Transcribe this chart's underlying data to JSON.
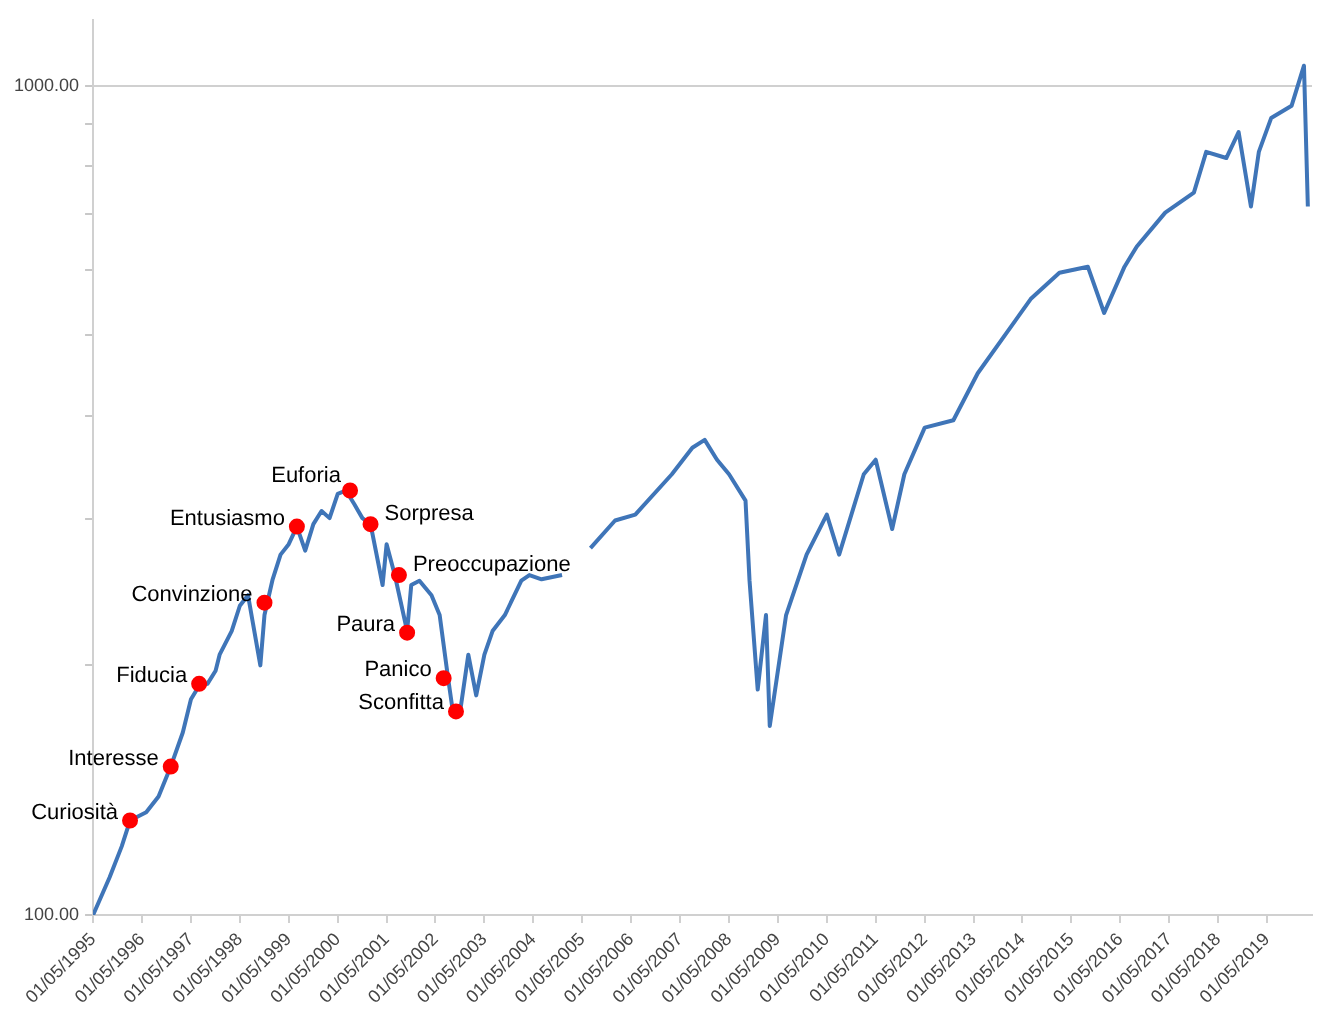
{
  "chart_data": {
    "type": "line",
    "x": [
      "1995-05",
      "1995-09",
      "1995-12",
      "1996-02",
      "1996-06",
      "1996-09",
      "1996-12",
      "1997-03",
      "1997-05",
      "1997-07",
      "1997-09",
      "1997-11",
      "1997-12",
      "1998-03",
      "1998-05",
      "1998-07",
      "1998-10",
      "1998-11",
      "1999-01",
      "1999-03",
      "1999-05",
      "1999-07",
      "1999-09",
      "1999-11",
      "2000-01",
      "2000-03",
      "2000-05",
      "2000-07",
      "2000-09",
      "2000-11",
      "2001-01",
      "2001-04",
      "2001-05",
      "2001-07",
      "2001-10",
      "2001-11",
      "2002-01",
      "2002-04",
      "2002-06",
      "2002-08",
      "2002-09",
      "2002-11",
      "2003-01",
      "2003-03",
      "2003-05",
      "2003-07",
      "2003-10",
      "2004-02",
      "2004-04",
      "2004-07",
      "2004-12",
      "2005-03",
      "2005-07",
      "2006-01",
      "2006-06",
      "2007-03",
      "2007-08",
      "2007-11",
      "2008-02",
      "2008-05",
      "2008-09",
      "2008-10",
      "2008-12",
      "2009-02",
      "2009-03",
      "2009-07",
      "2009-12",
      "2010-05",
      "2010-08",
      "2011-02",
      "2011-05",
      "2011-09",
      "2011-12",
      "2012-05",
      "2012-12",
      "2013-06",
      "2014-01",
      "2014-07",
      "2015-02",
      "2015-09",
      "2016-01",
      "2016-06",
      "2016-09",
      "2017-04",
      "2017-11",
      "2018-02",
      "2018-07",
      "2018-10",
      "2019-01",
      "2019-03",
      "2019-06",
      "2019-11",
      "2020-02",
      "2020-03"
    ],
    "series": [
      {
        "color": "#3f75b8",
        "values": [
          100,
          111,
          121,
          130,
          133,
          139,
          151,
          166,
          182,
          189,
          190,
          197,
          206,
          220,
          236,
          243,
          200,
          230,
          254,
          272,
          280,
          294,
          275,
          296,
          307,
          301,
          322,
          325,
          313,
          301,
          296,
          250,
          280,
          257,
          220,
          250,
          253,
          243,
          230,
          194,
          179,
          176,
          206,
          184,
          206,
          220,
          230,
          253,
          257,
          254,
          257,
          null,
          277,
          299,
          304,
          340,
          366,
          374,
          354,
          340,
          316,
          253,
          187,
          230,
          169,
          230,
          272,
          304,
          272,
          340,
          354,
          292,
          340,
          387,
          395,
          450,
          503,
          553,
          595,
          605,
          532,
          605,
          640,
          703,
          743,
          832,
          818,
          879,
          715,
          832,
          914,
          946,
          1057,
          715
        ]
      },
      {
        "type": "scatter",
        "marker": "circle",
        "color": "#ff0000",
        "x": [
          "1996-02",
          "1996-12",
          "1997-07",
          "1998-11",
          "1999-07",
          "2000-08",
          "2001-01",
          "2001-08",
          "2001-10",
          "2002-07",
          "2002-10"
        ],
        "values": [
          130,
          151,
          190,
          238,
          294,
          325,
          296,
          257,
          219,
          193,
          176
        ]
      }
    ],
    "annotations": [
      {
        "text": "Curiosità",
        "x": "1996-02",
        "y": 130
      },
      {
        "text": "Interesse",
        "x": "1996-12",
        "y": 151
      },
      {
        "text": "Fiducia",
        "x": "1997-07",
        "y": 190
      },
      {
        "text": "Convinzione",
        "x": "1998-11",
        "y": 238
      },
      {
        "text": "Entusiasmo",
        "x": "1999-07",
        "y": 294
      },
      {
        "text": "Euforia",
        "x": "2000-08",
        "y": 325
      },
      {
        "text": "Sorpresa",
        "x": "2001-01",
        "y": 296
      },
      {
        "text": "Preoccupazione",
        "x": "2001-08",
        "y": 257
      },
      {
        "text": "Paura",
        "x": "2001-10",
        "y": 219
      },
      {
        "text": "Panico",
        "x": "2002-07",
        "y": 193
      },
      {
        "text": "Sconfitta",
        "x": "2002-10",
        "y": 176
      }
    ],
    "log": "y",
    "xlim": [
      "1995-05",
      "2020-04"
    ],
    "xticks": [
      {
        "value": "1995-05-01",
        "label": "01/05/1995"
      },
      {
        "value": "1996-05-01",
        "label": "01/05/1996"
      },
      {
        "value": "1997-05-01",
        "label": "01/05/1997"
      },
      {
        "value": "1998-05-01",
        "label": "01/05/1998"
      },
      {
        "value": "1999-05-01",
        "label": "01/05/1999"
      },
      {
        "value": "2000-05-01",
        "label": "01/05/2000"
      },
      {
        "value": "2001-05-01",
        "label": "01/05/2001"
      },
      {
        "value": "2002-05-01",
        "label": "01/05/2002"
      },
      {
        "value": "2003-05-01",
        "label": "01/05/2003"
      },
      {
        "value": "2004-05-01",
        "label": "01/05/2004"
      },
      {
        "value": "2005-05-01",
        "label": "01/05/2005"
      },
      {
        "value": "2006-05-01",
        "label": "01/05/2006"
      },
      {
        "value": "2007-05-01",
        "label": "01/05/2007"
      },
      {
        "value": "2008-05-01",
        "label": "01/05/2008"
      },
      {
        "value": "2009-05-01",
        "label": "01/05/2009"
      },
      {
        "value": "2010-05-01",
        "label": "01/05/2010"
      },
      {
        "value": "2011-05-01",
        "label": "01/05/2011"
      },
      {
        "value": "2012-05-01",
        "label": "01/05/2012"
      },
      {
        "value": "2013-05-01",
        "label": "01/05/2013"
      },
      {
        "value": "2014-05-01",
        "label": "01/05/2014"
      },
      {
        "value": "2015-05-01",
        "label": "01/05/2015"
      },
      {
        "value": "2016-05-01",
        "label": "01/05/2016"
      },
      {
        "value": "2017-05-01",
        "label": "01/05/2017"
      },
      {
        "value": "2018-05-01",
        "label": "01/05/2018"
      },
      {
        "value": "2019-05-01",
        "label": "01/05/2019"
      }
    ],
    "ylim": [
      100,
      1200
    ],
    "yticks": [
      {
        "value": 100,
        "label": "100.00"
      },
      {
        "value": 200,
        "label": null
      },
      {
        "value": 300,
        "label": null
      },
      {
        "value": 400,
        "label": null
      },
      {
        "value": 500,
        "label": null
      },
      {
        "value": 600,
        "label": null
      },
      {
        "value": 700,
        "label": null
      },
      {
        "value": 800,
        "label": null
      },
      {
        "value": 900,
        "label": null
      },
      {
        "value": 1000,
        "label": "1000.00"
      }
    ],
    "grid": "y",
    "legend": false
  }
}
